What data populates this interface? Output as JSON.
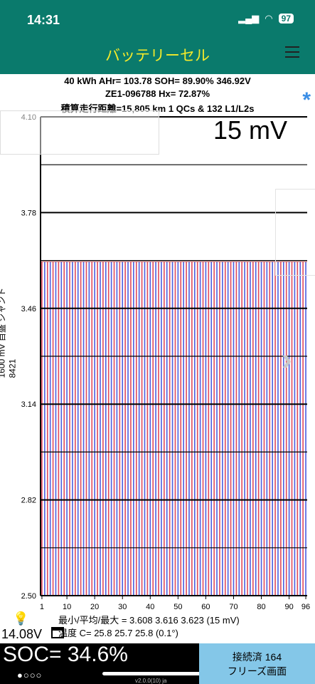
{
  "status_bar": {
    "time": "14:31",
    "battery": "97"
  },
  "header": {
    "title": "バッテリーセル"
  },
  "info": {
    "line1": "40 kWh  AHr= 103.78  SOH= 89.90%   346.92V",
    "line2": "ZE1-096788   Hx= 72.87%",
    "line3": "積算走行距離=15,805 km 1 QCs & 132 L1/L2s",
    "asterisk": "*"
  },
  "chart_data": {
    "type": "bar",
    "title": "15 mV",
    "ylabel": "1600 mV 目盛  シャント 8421",
    "ylim": [
      2.5,
      4.1
    ],
    "y_ticks": [
      "4.10",
      "3.78",
      "3.46",
      "3.14",
      "2.82",
      "2.50"
    ],
    "x_ticks": [
      "1",
      "10",
      "20",
      "30",
      "40",
      "50",
      "60",
      "70",
      "80",
      "90",
      "96"
    ],
    "cell_count": 96,
    "min": 3.608,
    "avg": 3.616,
    "max": 3.623,
    "colors": {
      "odd": "#e04a5a",
      "even": "#4a5ee0",
      "grid": "#000000"
    }
  },
  "stats": {
    "line1": "最小/平均/最大 = 3.608 3.616 3.623  (15 mV)",
    "line2": "温度 C= 25.8  25.7  25.8  (0.1°)"
  },
  "aux_voltage": "14.08V",
  "soc": "SOC= 34.6%",
  "page_dots": "●○○○",
  "version": "v2.0.0(10) ja",
  "connection": {
    "line1": "接続済 164",
    "line2": "フリーズ画面"
  }
}
